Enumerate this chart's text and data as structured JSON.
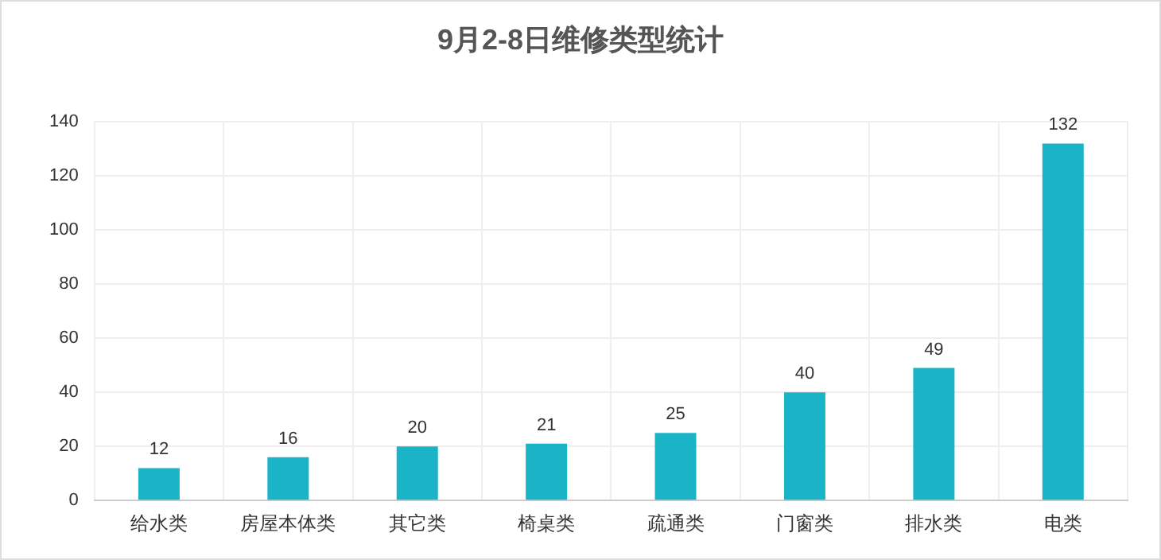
{
  "chart_data": {
    "type": "bar",
    "title": "9月2-8日维修类型统计",
    "categories": [
      "给水类",
      "房屋本体类",
      "其它类",
      "椅桌类",
      "疏通类",
      "门窗类",
      "排水类",
      "电类"
    ],
    "values": [
      12,
      16,
      20,
      21,
      25,
      40,
      49,
      132
    ],
    "color": "#1ab4c6",
    "ylim": [
      0,
      140
    ],
    "yticks": [
      0,
      20,
      40,
      60,
      80,
      100,
      120,
      140
    ],
    "grid": true,
    "data_labels": true
  }
}
